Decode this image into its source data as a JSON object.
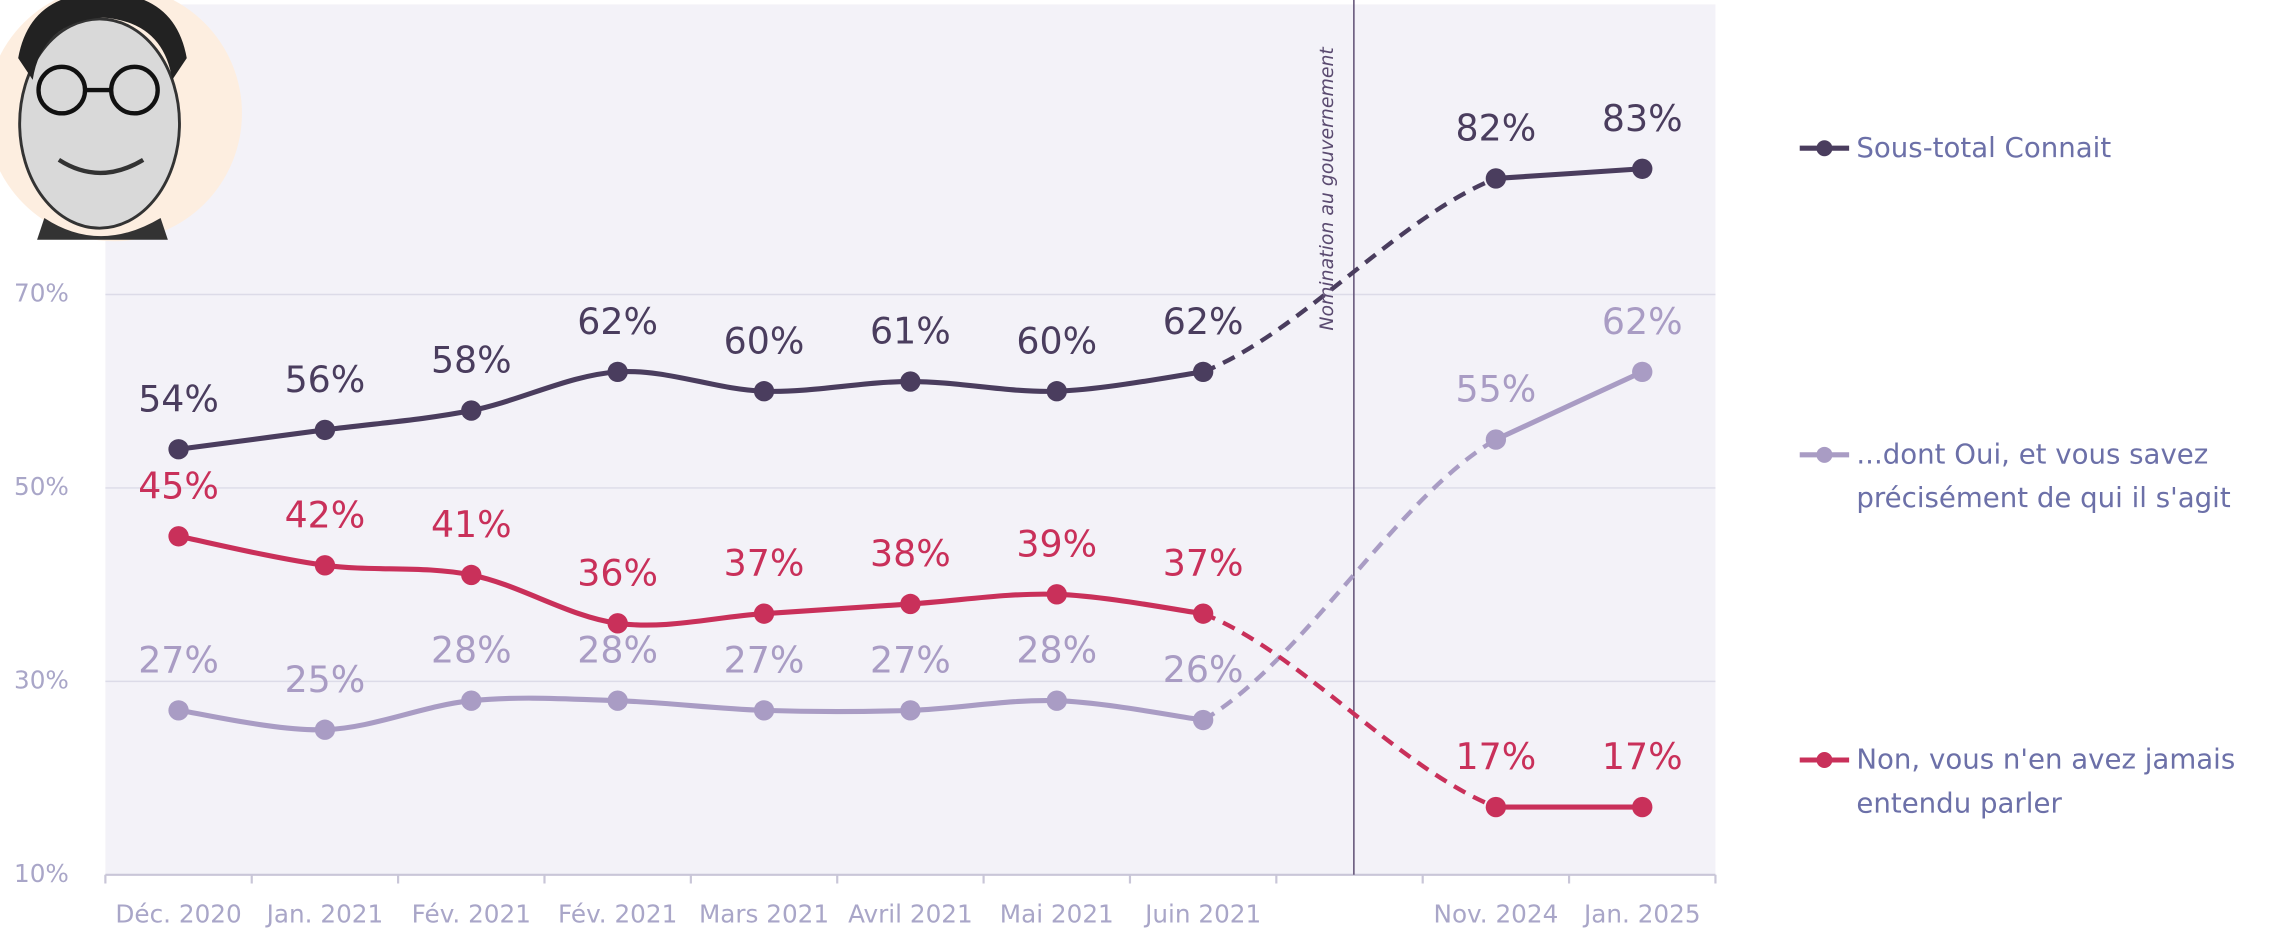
{
  "chart_data": {
    "type": "line",
    "categories": [
      "Déc. 2020",
      "Jan. 2021",
      "Fév. 2021",
      "Fév. 2021",
      "Mars 2021",
      "Avril 2021",
      "Mai 2021",
      "Juin 2021",
      null,
      "Nov. 2024",
      "Jan. 2025"
    ],
    "series": [
      {
        "name": "Sous-total Connait",
        "color": "#4a3d5e",
        "values": [
          54,
          56,
          58,
          62,
          60,
          61,
          60,
          62,
          null,
          82,
          83
        ],
        "value_labels": [
          "54%",
          "56%",
          "58%",
          "62%",
          "60%",
          "61%",
          "60%",
          "62%",
          null,
          "82%",
          "83%"
        ]
      },
      {
        "name": "...dont Oui, et vous savez précisément de qui il s'agit",
        "color": "#a99cc4",
        "values": [
          27,
          25,
          28,
          28,
          27,
          27,
          28,
          26,
          null,
          55,
          62
        ],
        "value_labels": [
          "27%",
          "25%",
          "28%",
          "28%",
          "27%",
          "27%",
          "28%",
          "26%",
          null,
          "55%",
          "62%"
        ]
      },
      {
        "name": "Non, vous n'en avez jamais entendu parler",
        "color": "#c9305a",
        "values": [
          45,
          42,
          41,
          36,
          37,
          38,
          39,
          37,
          null,
          17,
          17
        ],
        "value_labels": [
          "45%",
          "42%",
          "41%",
          "36%",
          "37%",
          "38%",
          "39%",
          "37%",
          null,
          "17%",
          "17%"
        ]
      }
    ],
    "ylim": [
      10,
      100
    ],
    "yticks": [
      {
        "value": 10,
        "label": "10%"
      },
      {
        "value": 30,
        "label": "30%"
      },
      {
        "value": 50,
        "label": "50%"
      },
      {
        "value": 70,
        "label": "70%"
      }
    ],
    "grid": true,
    "legend": "right",
    "annotation": "Nomination au gouvernement"
  }
}
